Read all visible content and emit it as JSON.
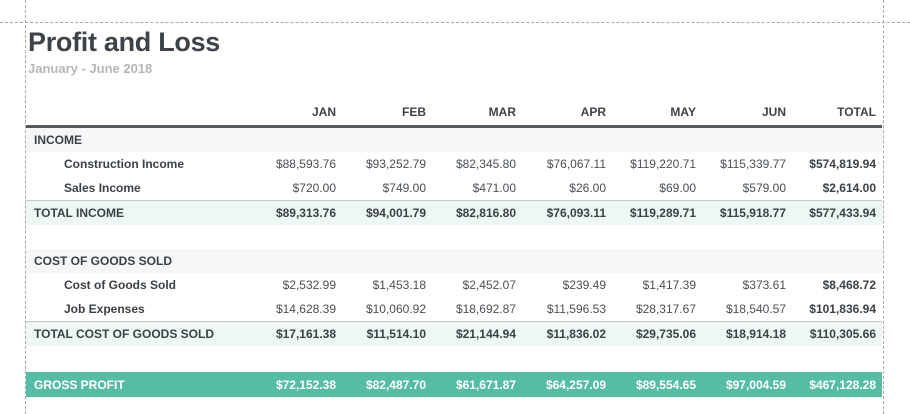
{
  "page": {
    "title": "Profit and Loss",
    "subtitle": "January - June 2018"
  },
  "columns": [
    "JAN",
    "FEB",
    "MAR",
    "APR",
    "MAY",
    "JUN",
    "TOTAL"
  ],
  "sections": [
    {
      "header": "INCOME",
      "rows": [
        {
          "label": "Construction Income",
          "values": [
            "$88,593.76",
            "$93,252.79",
            "$82,345.80",
            "$76,067.11",
            "$119,220.71",
            "$115,339.77",
            "$574,819.94"
          ]
        },
        {
          "label": "Sales Income",
          "values": [
            "$720.00",
            "$749.00",
            "$471.00",
            "$26.00",
            "$69.00",
            "$579.00",
            "$2,614.00"
          ]
        }
      ],
      "total": {
        "label": "TOTAL INCOME",
        "values": [
          "$89,313.76",
          "$94,001.79",
          "$82,816.80",
          "$76,093.11",
          "$119,289.71",
          "$115,918.77",
          "$577,433.94"
        ]
      }
    },
    {
      "header": "COST OF GOODS SOLD",
      "rows": [
        {
          "label": "Cost of Goods Sold",
          "values": [
            "$2,532.99",
            "$1,453.18",
            "$2,452.07",
            "$239.49",
            "$1,417.39",
            "$373.61",
            "$8,468.72"
          ]
        },
        {
          "label": "Job Expenses",
          "values": [
            "$14,628.39",
            "$10,060.92",
            "$18,692.87",
            "$11,596.53",
            "$28,317.67",
            "$18,540.57",
            "$101,836.94"
          ]
        }
      ],
      "total": {
        "label": "TOTAL COST OF GOODS SOLD",
        "values": [
          "$17,161.38",
          "$11,514.10",
          "$21,144.94",
          "$11,836.02",
          "$29,735.06",
          "$18,914.18",
          "$110,305.66"
        ]
      }
    }
  ],
  "gross_profit": {
    "label": "GROSS PROFIT",
    "values": [
      "$72,152.38",
      "$82,487.70",
      "$61,671.87",
      "$64,257.09",
      "$89,554.65",
      "$97,004.59",
      "$467,128.28"
    ]
  },
  "colors": {
    "accent_teal": "#56bca4",
    "total_row_bg": "#eef7f4",
    "section_row_bg": "#f5f6f8",
    "header_rule": "#53585d",
    "title_text": "#3d4349",
    "subtitle_text": "#b4b6b8",
    "page_break_dash": "#a7a7a7"
  }
}
